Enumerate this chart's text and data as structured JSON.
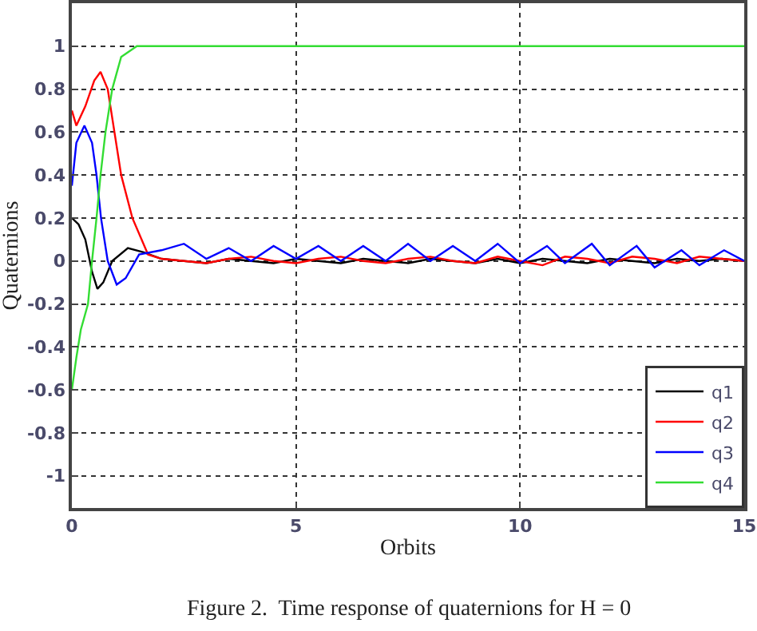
{
  "chart_data": {
    "type": "line",
    "xlabel": "Orbits",
    "ylabel": "Quaternions",
    "annotations": [
      "Figure 2.  Time response of quaternions for H = 0"
    ],
    "xlim": [
      0,
      15
    ],
    "xticks": [
      0,
      5,
      10,
      15
    ],
    "ylim": [
      -1.15,
      1.2
    ],
    "yticks": [
      -1,
      -0.8,
      -0.6,
      -0.4,
      -0.2,
      0,
      0.2,
      0.4,
      0.6,
      0.8,
      1
    ],
    "grid": true,
    "legend": "bottom right",
    "line_style": "solid",
    "marker": "none",
    "series": [
      {
        "name": "q1",
        "color": "#000000",
        "x": [
          0,
          0.15,
          0.3,
          0.45,
          0.57,
          0.7,
          0.9,
          1.25,
          1.6,
          2,
          2.5,
          3,
          3.5,
          4,
          4.5,
          5,
          5.5,
          6,
          6.5,
          7,
          7.5,
          8,
          8.5,
          9,
          9.5,
          10,
          10.5,
          11,
          11.5,
          12,
          12.5,
          13,
          13.5,
          14,
          14.5,
          15
        ],
        "values": [
          0.2,
          0.17,
          0.1,
          -0.05,
          -0.13,
          -0.1,
          0,
          0.06,
          0.04,
          0.01,
          0,
          -0.01,
          0.01,
          0,
          -0.01,
          0.01,
          0,
          -0.01,
          0.01,
          0,
          -0.01,
          0.01,
          0,
          -0.01,
          0.01,
          -0.01,
          0.01,
          0,
          -0.01,
          0.01,
          0,
          -0.01,
          0.01,
          0,
          0.01,
          0
        ]
      },
      {
        "name": "q2",
        "color": "#ff0000",
        "x": [
          0,
          0.1,
          0.3,
          0.5,
          0.64,
          0.8,
          0.95,
          1.1,
          1.35,
          1.7,
          2,
          2.5,
          3,
          3.5,
          4,
          4.5,
          5,
          5.5,
          6,
          6.5,
          7,
          7.5,
          8,
          8.5,
          9,
          9.5,
          10,
          10.5,
          11,
          11.5,
          12,
          12.5,
          13,
          13.5,
          14,
          14.5,
          15
        ],
        "values": [
          0.7,
          0.63,
          0.72,
          0.84,
          0.88,
          0.8,
          0.6,
          0.4,
          0.2,
          0.03,
          0.01,
          0,
          -0.01,
          0.01,
          0.02,
          0,
          -0.01,
          0.01,
          0.02,
          0,
          -0.01,
          0.01,
          0.02,
          0,
          -0.01,
          0.02,
          0,
          -0.02,
          0.02,
          0.01,
          -0.01,
          0.02,
          0.01,
          -0.01,
          0.02,
          0.01,
          0
        ]
      },
      {
        "name": "q3",
        "color": "#0000ff",
        "x": [
          0,
          0.1,
          0.28,
          0.45,
          0.55,
          0.65,
          0.8,
          1,
          1.2,
          1.5,
          2,
          2.5,
          3,
          3.5,
          4,
          4.5,
          5,
          5.5,
          6,
          6.5,
          7,
          7.5,
          8,
          8.5,
          9,
          9.5,
          10,
          10.6,
          11,
          11.6,
          12,
          12.6,
          13,
          13.6,
          14,
          14.55,
          15
        ],
        "values": [
          0.35,
          0.55,
          0.63,
          0.55,
          0.4,
          0.2,
          0,
          -0.11,
          -0.08,
          0.03,
          0.05,
          0.08,
          0.01,
          0.06,
          0,
          0.07,
          0.01,
          0.07,
          0,
          0.07,
          0,
          0.08,
          0,
          0.07,
          0,
          0.08,
          -0.01,
          0.07,
          -0.01,
          0.08,
          -0.02,
          0.07,
          -0.03,
          0.05,
          -0.02,
          0.05,
          0
        ]
      },
      {
        "name": "q4",
        "color": "#33dd33",
        "x": [
          0,
          0.1,
          0.2,
          0.36,
          0.45,
          0.55,
          0.64,
          0.75,
          0.9,
          1.1,
          1.45,
          15
        ],
        "values": [
          -0.6,
          -0.45,
          -0.32,
          -0.2,
          0,
          0.2,
          0.4,
          0.6,
          0.8,
          0.95,
          1,
          1
        ]
      }
    ]
  }
}
